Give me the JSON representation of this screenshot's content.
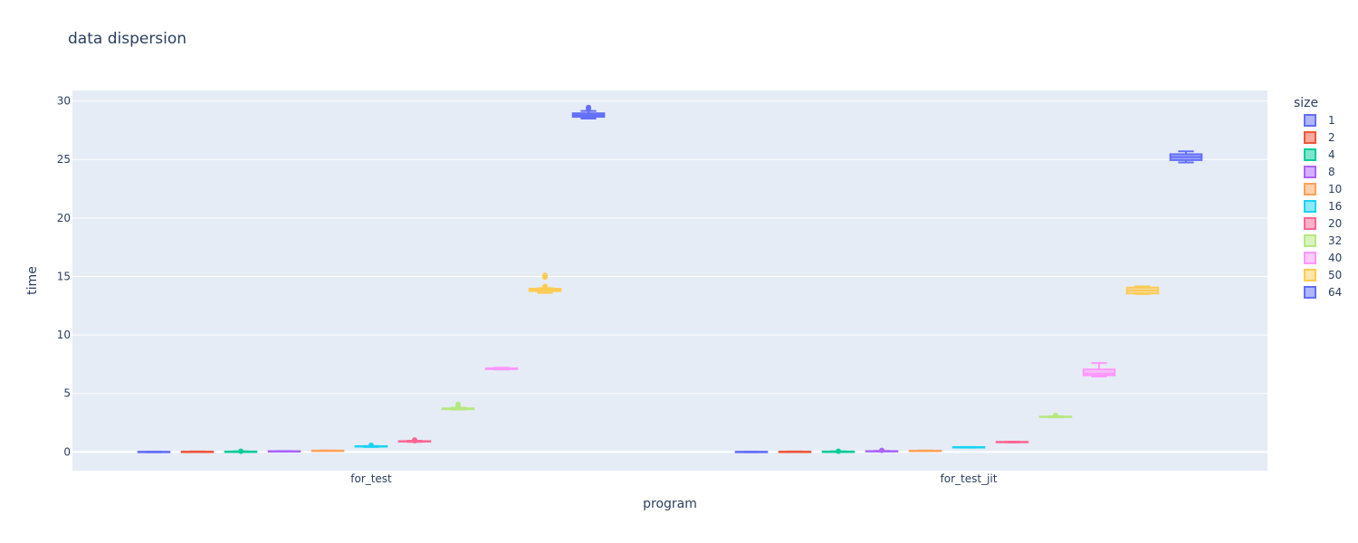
{
  "chart_data": {
    "type": "box",
    "title": "data dispersion",
    "xlabel": "program",
    "ylabel": "time",
    "categories": [
      "for_test",
      "for_test_jit"
    ],
    "ylim": [
      -1.6,
      30.9
    ],
    "yticks": [
      0,
      5,
      10,
      15,
      20,
      25,
      30
    ],
    "grid": true,
    "legend": {
      "title": "size",
      "placement": "right"
    },
    "series": [
      {
        "name": "1",
        "color": "#636efa",
        "boxes": [
          {
            "min": -0.02,
            "q1": -0.01,
            "median": 0.0,
            "q3": 0.01,
            "max": 0.02,
            "outliers": []
          },
          {
            "min": -0.02,
            "q1": -0.01,
            "median": 0.0,
            "q3": 0.01,
            "max": 0.02,
            "outliers": []
          }
        ]
      },
      {
        "name": "2",
        "color": "#ef553b",
        "boxes": [
          {
            "min": -0.01,
            "q1": 0.0,
            "median": 0.01,
            "q3": 0.02,
            "max": 0.03,
            "outliers": []
          },
          {
            "min": -0.01,
            "q1": 0.0,
            "median": 0.01,
            "q3": 0.02,
            "max": 0.03,
            "outliers": []
          }
        ]
      },
      {
        "name": "4",
        "color": "#00cc96",
        "boxes": [
          {
            "min": 0.0,
            "q1": 0.01,
            "median": 0.02,
            "q3": 0.03,
            "max": 0.04,
            "outliers": [
              0.05
            ]
          },
          {
            "min": 0.0,
            "q1": 0.01,
            "median": 0.02,
            "q3": 0.03,
            "max": 0.04,
            "outliers": [
              0.05
            ]
          }
        ]
      },
      {
        "name": "8",
        "color": "#ab63fa",
        "boxes": [
          {
            "min": 0.03,
            "q1": 0.04,
            "median": 0.05,
            "q3": 0.06,
            "max": 0.07,
            "outliers": []
          },
          {
            "min": 0.04,
            "q1": 0.05,
            "median": 0.06,
            "q3": 0.07,
            "max": 0.08,
            "outliers": [
              0.13
            ]
          }
        ]
      },
      {
        "name": "10",
        "color": "#ffa15a",
        "boxes": [
          {
            "min": 0.07,
            "q1": 0.08,
            "median": 0.1,
            "q3": 0.11,
            "max": 0.12,
            "outliers": []
          },
          {
            "min": 0.06,
            "q1": 0.08,
            "median": 0.09,
            "q3": 0.1,
            "max": 0.12,
            "outliers": []
          }
        ]
      },
      {
        "name": "16",
        "color": "#19d3f3",
        "boxes": [
          {
            "min": 0.42,
            "q1": 0.45,
            "median": 0.47,
            "q3": 0.49,
            "max": 0.5,
            "outliers": [
              0.57
            ]
          },
          {
            "min": 0.36,
            "q1": 0.38,
            "median": 0.4,
            "q3": 0.41,
            "max": 0.42,
            "outliers": []
          }
        ]
      },
      {
        "name": "20",
        "color": "#ff6692",
        "boxes": [
          {
            "min": 0.86,
            "q1": 0.88,
            "median": 0.9,
            "q3": 0.92,
            "max": 0.95,
            "outliers": [
              1.02,
              0.95
            ]
          },
          {
            "min": 0.81,
            "q1": 0.83,
            "median": 0.84,
            "q3": 0.86,
            "max": 0.88,
            "outliers": []
          }
        ]
      },
      {
        "name": "32",
        "color": "#b6e880",
        "boxes": [
          {
            "min": 3.62,
            "q1": 3.65,
            "median": 3.68,
            "q3": 3.72,
            "max": 3.78,
            "outliers": [
              4.08,
              3.86
            ]
          },
          {
            "min": 2.95,
            "q1": 2.98,
            "median": 3.0,
            "q3": 3.02,
            "max": 3.05,
            "outliers": [
              3.12
            ]
          }
        ]
      },
      {
        "name": "40",
        "color": "#ff97ff",
        "boxes": [
          {
            "min": 7.05,
            "q1": 7.08,
            "median": 7.12,
            "q3": 7.15,
            "max": 7.2,
            "outliers": []
          },
          {
            "min": 6.45,
            "q1": 6.55,
            "median": 6.7,
            "q3": 7.05,
            "max": 7.6,
            "outliers": []
          }
        ]
      },
      {
        "name": "50",
        "color": "#fecb52",
        "boxes": [
          {
            "min": 13.6,
            "q1": 13.75,
            "median": 13.85,
            "q3": 13.95,
            "max": 14.0,
            "outliers": [
              14.15,
              14.95,
              15.1
            ]
          },
          {
            "min": 13.5,
            "q1": 13.55,
            "median": 13.8,
            "q3": 14.05,
            "max": 14.15,
            "outliers": []
          }
        ]
      },
      {
        "name": "64",
        "color": "#636efa",
        "boxes": [
          {
            "min": 28.5,
            "q1": 28.65,
            "median": 28.8,
            "q3": 28.95,
            "max": 29.15,
            "outliers": [
              29.35,
              29.45
            ]
          },
          {
            "min": 24.75,
            "q1": 24.95,
            "median": 25.2,
            "q3": 25.45,
            "max": 25.7,
            "outliers": []
          }
        ]
      }
    ]
  }
}
